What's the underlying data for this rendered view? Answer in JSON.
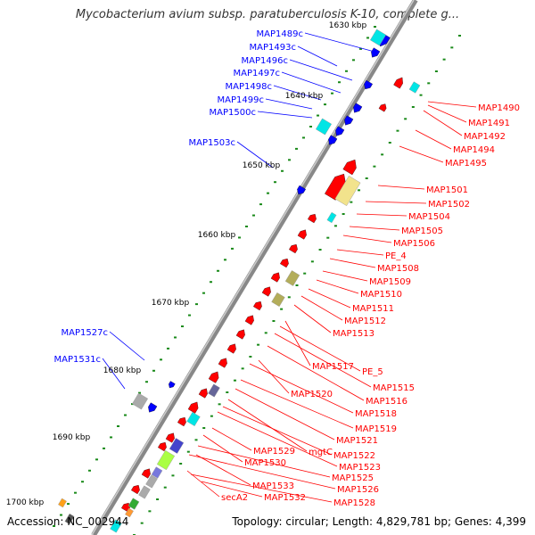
{
  "title": "Mycobacterium avium subsp. paratuberculosis K-10, complete g...",
  "footer": {
    "accession": "Accession: NC_002944",
    "topology": "Topology: circular; Length: 4,829,781 bp; Genes: 4,399"
  },
  "colors": {
    "forward": "#ff0000",
    "reverse": "#0000ff",
    "cyan": "#00e5e5",
    "khaki": "#f2e38c",
    "olive": "#b3ad5a",
    "gray": "#aaaaaa",
    "lime": "#aaff44",
    "orange": "#ff9933",
    "backbone": "#888888"
  },
  "kbp_ticks": [
    "1630 kbp",
    "1640 kbp",
    "1650 kbp",
    "1660 kbp",
    "1670 kbp",
    "1680 kbp",
    "1690 kbp",
    "1700 kbp"
  ],
  "left_labels": [
    "MAP1489c",
    "MAP1493c",
    "MAP1496c",
    "MAP1497c",
    "MAP1498c",
    "MAP1499c",
    "MAP1500c",
    "MAP1503c",
    "MAP1527c",
    "MAP1531c"
  ],
  "right_labels": [
    "MAP1490",
    "MAP1491",
    "MAP1492",
    "MAP1494",
    "MAP1495",
    "MAP1501",
    "MAP1502",
    "MAP1504",
    "MAP1505",
    "MAP1506",
    "PE_4",
    "MAP1508",
    "MAP1509",
    "MAP1510",
    "MAP1511",
    "MAP1512",
    "MAP1513",
    "MAP1517",
    "PE_5",
    "MAP1515",
    "MAP1516",
    "MAP1520",
    "MAP1518",
    "MAP1519",
    "MAP1521",
    "mgtC",
    "MAP1522",
    "MAP1523",
    "MAP1529",
    "MAP1530",
    "MAP1525",
    "MAP1526",
    "MAP1533",
    "secA2",
    "MAP1532",
    "MAP1528"
  ]
}
